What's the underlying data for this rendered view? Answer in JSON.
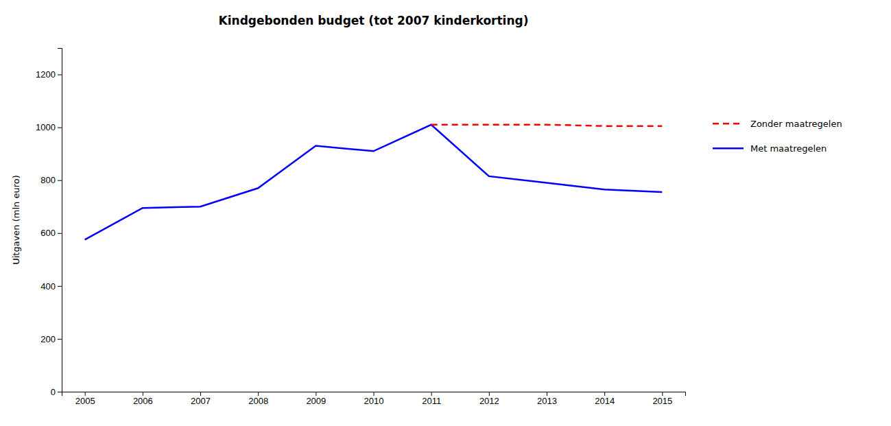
{
  "chart_data": {
    "type": "line",
    "title": "Kindgebonden budget (tot 2007 kinderkorting)",
    "y_label": "Uitgaven (mln euro)",
    "x": [
      2005,
      2006,
      2007,
      2008,
      2009,
      2010,
      2011,
      2012,
      2013,
      2014,
      2015
    ],
    "series": [
      {
        "name": "Met maatregelen",
        "color": "#0000FF",
        "line_style": "solid",
        "values": [
          575,
          695,
          700,
          770,
          930,
          910,
          1010,
          815,
          790,
          765,
          755
        ]
      },
      {
        "name": "Zonder maatregelen",
        "color": "#FF0000",
        "line_style": "dashed",
        "values": [
          null,
          null,
          null,
          null,
          null,
          null,
          1010,
          1010,
          1010,
          1005,
          1005
        ]
      }
    ],
    "xlim": [
      2004.6,
      2015.4
    ],
    "xticks": [
      2005,
      2006,
      2007,
      2008,
      2009,
      2010,
      2011,
      2012,
      2013,
      2014,
      2015
    ],
    "ylim": [
      0,
      1300
    ],
    "yticks": [
      0,
      200,
      400,
      600,
      800,
      1000,
      1200
    ],
    "grid": false,
    "legend": "right"
  }
}
